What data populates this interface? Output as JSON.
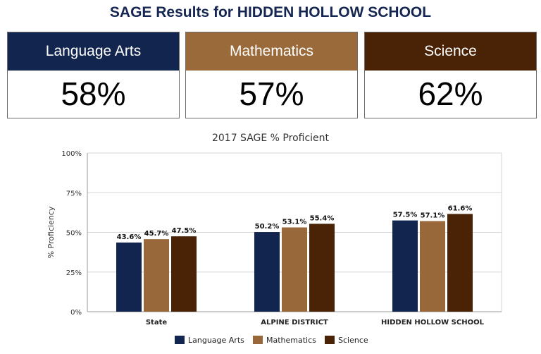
{
  "header": {
    "title": "SAGE Results for HIDDEN HOLLOW SCHOOL"
  },
  "cards": [
    {
      "label": "Language Arts",
      "value": "58%",
      "color": "#12254f"
    },
    {
      "label": "Mathematics",
      "value": "57%",
      "color": "#9a6a3a"
    },
    {
      "label": "Science",
      "value": "62%",
      "color": "#4a2307"
    }
  ],
  "chart_data": {
    "type": "bar",
    "title": "2017 SAGE % Proficient",
    "xlabel": "",
    "ylabel": "% Proficiency",
    "categories": [
      "State",
      "ALPINE DISTRICT",
      "HIDDEN HOLLOW SCHOOL"
    ],
    "series": [
      {
        "name": "Language Arts",
        "color": "#12254f",
        "values": [
          43.6,
          50.2,
          57.5
        ],
        "labels": [
          "43.6%",
          "50.2%",
          "57.5%"
        ]
      },
      {
        "name": "Mathematics",
        "color": "#98683a",
        "values": [
          45.7,
          53.1,
          57.1
        ],
        "labels": [
          "45.7%",
          "53.1%",
          "57.1%"
        ]
      },
      {
        "name": "Science",
        "color": "#4a2307",
        "values": [
          47.5,
          55.4,
          61.6
        ],
        "labels": [
          "47.5%",
          "55.4%",
          "61.6%"
        ]
      }
    ],
    "ylim": [
      0,
      100
    ],
    "yticks": [
      0,
      25,
      50,
      75,
      100
    ],
    "ytick_labels": [
      "0%",
      "25%",
      "50%",
      "75%",
      "100%"
    ],
    "grid": true,
    "legend_position": "bottom"
  }
}
